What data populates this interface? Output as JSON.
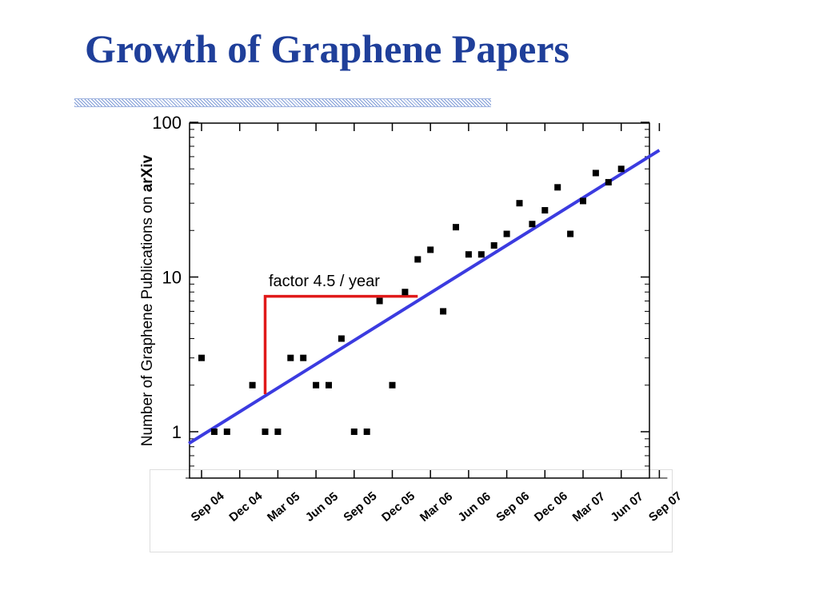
{
  "slide": {
    "title": "Growth of Graphene Papers"
  },
  "colors": {
    "title": "#1f3f9a",
    "points": "#000000",
    "fit_line": "#3b3be0",
    "annotation_bracket": "#e01a1a"
  },
  "chart_data": {
    "type": "scatter",
    "title": "",
    "ylabel_prefix": "Number of Graphene Publications on ",
    "ylabel_emph": "arXiv",
    "xlabel": "",
    "yscale": "log",
    "ylim": [
      0.6,
      100
    ],
    "yticks": [
      1,
      10,
      100
    ],
    "ytick_labels": [
      "1",
      "10",
      "100"
    ],
    "xticks": [
      "Sep 04",
      "Dec 04",
      "Mar 05",
      "Jun 05",
      "Sep 05",
      "Dec 05",
      "Mar 06",
      "Jun 06",
      "Sep 06",
      "Dec 06",
      "Mar 07",
      "Jun 07",
      "Sep 07"
    ],
    "x_unit": "month index from Sep 04",
    "xlim": [
      -1,
      36
    ],
    "grid": false,
    "series": [
      {
        "marker": "square",
        "points": [
          [
            0,
            3
          ],
          [
            1,
            1
          ],
          [
            2,
            1
          ],
          [
            4,
            2
          ],
          [
            5,
            1
          ],
          [
            6,
            1
          ],
          [
            7,
            3
          ],
          [
            8,
            3
          ],
          [
            9,
            2
          ],
          [
            10,
            2
          ],
          [
            11,
            4
          ],
          [
            12,
            1
          ],
          [
            13,
            1
          ],
          [
            14,
            7
          ],
          [
            15,
            2
          ],
          [
            16,
            8
          ],
          [
            17,
            13
          ],
          [
            18,
            15
          ],
          [
            19,
            6
          ],
          [
            20,
            21
          ],
          [
            21,
            14
          ],
          [
            22,
            14
          ],
          [
            23,
            16
          ],
          [
            24,
            19
          ],
          [
            25,
            30
          ],
          [
            26,
            22
          ],
          [
            27,
            27
          ],
          [
            28,
            38
          ],
          [
            29,
            19
          ],
          [
            30,
            31
          ],
          [
            31,
            47
          ],
          [
            32,
            41
          ],
          [
            33,
            50
          ]
        ]
      }
    ],
    "fit_line": {
      "x": [
        -1,
        36
      ],
      "y": [
        0.84,
        66
      ]
    },
    "annotation": {
      "text": "factor 4.5 / year",
      "bracket_x": [
        5,
        17
      ],
      "bracket_y": [
        1.75,
        7.5
      ]
    }
  }
}
